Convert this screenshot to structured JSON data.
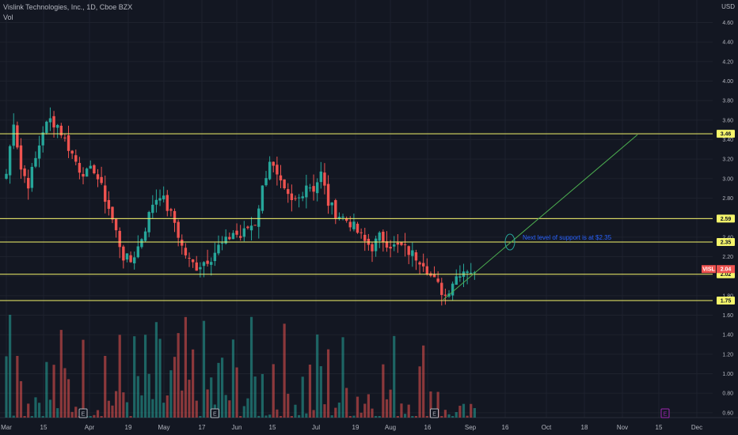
{
  "header": {
    "title": "Vislink Technologies, Inc., 1D, Cboe BZX",
    "vol_label": "Vol",
    "currency": "USD"
  },
  "colors": {
    "background": "#131722",
    "grid": "#1e222d",
    "up": "#26a69a",
    "down": "#ef5350",
    "level_line": "#f5f56b",
    "trend_line": "#4caf50",
    "note_text": "#2962ff",
    "earnings_purple": "#9c27b0"
  },
  "chart_data": {
    "type": "candlestick",
    "symbol": "VISL",
    "last_price_label": "2.04",
    "y_ticks": [
      "4.60",
      "4.40",
      "4.20",
      "4.00",
      "3.80",
      "3.60",
      "3.40",
      "3.20",
      "3.00",
      "2.80",
      "2.60",
      "2.40",
      "2.20",
      "2.00",
      "1.80",
      "1.60",
      "1.40",
      "1.20",
      "1.00",
      "0.80",
      "0.60"
    ],
    "ylim": [
      0.55,
      4.75
    ],
    "x_ticks": [
      "Mar",
      "15",
      "Apr",
      "19",
      "May",
      "17",
      "Jun",
      "15",
      "Jul",
      "19",
      "Aug",
      "16",
      "Sep",
      "16",
      "Oct",
      "18",
      "Nov",
      "15",
      "Dec"
    ],
    "horizontal_levels": [
      {
        "label": "3.46",
        "value": 3.46
      },
      {
        "label": "2.59",
        "value": 2.59
      },
      {
        "label": "2.35",
        "value": 2.35
      },
      {
        "label": "2.02",
        "value": 2.02
      },
      {
        "label": "1.75",
        "value": 1.75
      }
    ],
    "annotation": "Next level of support is at $2.35",
    "trend_line": {
      "from_day": 120,
      "from_price": 1.76,
      "to_day": 188,
      "to_price": 3.45
    },
    "earnings_markers": [
      {
        "label": "E",
        "day": 21,
        "upcoming": false
      },
      {
        "label": "E",
        "day": 57,
        "upcoming": false
      },
      {
        "label": "E",
        "day": 117,
        "upcoming": false
      },
      {
        "label": "E",
        "day": 187,
        "upcoming": true
      }
    ],
    "price_anchors": [
      [
        0,
        3.05
      ],
      [
        2,
        3.6
      ],
      [
        4,
        3.1
      ],
      [
        6,
        2.95
      ],
      [
        8,
        3.2
      ],
      [
        10,
        3.5
      ],
      [
        12,
        3.6
      ],
      [
        14,
        3.55
      ],
      [
        16,
        3.4
      ],
      [
        18,
        3.25
      ],
      [
        20,
        3.1
      ],
      [
        22,
        3.05
      ],
      [
        24,
        3.1
      ],
      [
        26,
        2.9
      ],
      [
        28,
        2.7
      ],
      [
        30,
        2.45
      ],
      [
        32,
        2.2
      ],
      [
        34,
        2.15
      ],
      [
        36,
        2.3
      ],
      [
        38,
        2.5
      ],
      [
        40,
        2.75
      ],
      [
        42,
        2.85
      ],
      [
        44,
        2.7
      ],
      [
        46,
        2.55
      ],
      [
        48,
        2.3
      ],
      [
        50,
        2.15
      ],
      [
        52,
        2.1
      ],
      [
        54,
        2.15
      ],
      [
        56,
        2.2
      ],
      [
        58,
        2.3
      ],
      [
        60,
        2.35
      ],
      [
        62,
        2.45
      ],
      [
        64,
        2.4
      ],
      [
        66,
        2.5
      ],
      [
        68,
        2.55
      ],
      [
        70,
        2.9
      ],
      [
        72,
        3.2
      ],
      [
        74,
        3.0
      ],
      [
        76,
        2.85
      ],
      [
        78,
        2.75
      ],
      [
        80,
        2.8
      ],
      [
        82,
        2.95
      ],
      [
        84,
        2.9
      ],
      [
        86,
        3.05
      ],
      [
        88,
        2.75
      ],
      [
        90,
        2.65
      ],
      [
        92,
        2.6
      ],
      [
        94,
        2.55
      ],
      [
        96,
        2.45
      ],
      [
        98,
        2.35
      ],
      [
        100,
        2.3
      ],
      [
        102,
        2.4
      ],
      [
        104,
        2.35
      ],
      [
        106,
        2.3
      ],
      [
        108,
        2.3
      ],
      [
        110,
        2.25
      ],
      [
        112,
        2.2
      ],
      [
        114,
        2.15
      ],
      [
        116,
        2.0
      ],
      [
        118,
        1.9
      ],
      [
        120,
        1.8
      ],
      [
        122,
        1.95
      ],
      [
        124,
        2.05
      ],
      [
        126,
        2.08
      ],
      [
        128,
        2.04
      ]
    ],
    "volume_range": [
      0,
      10
    ]
  }
}
